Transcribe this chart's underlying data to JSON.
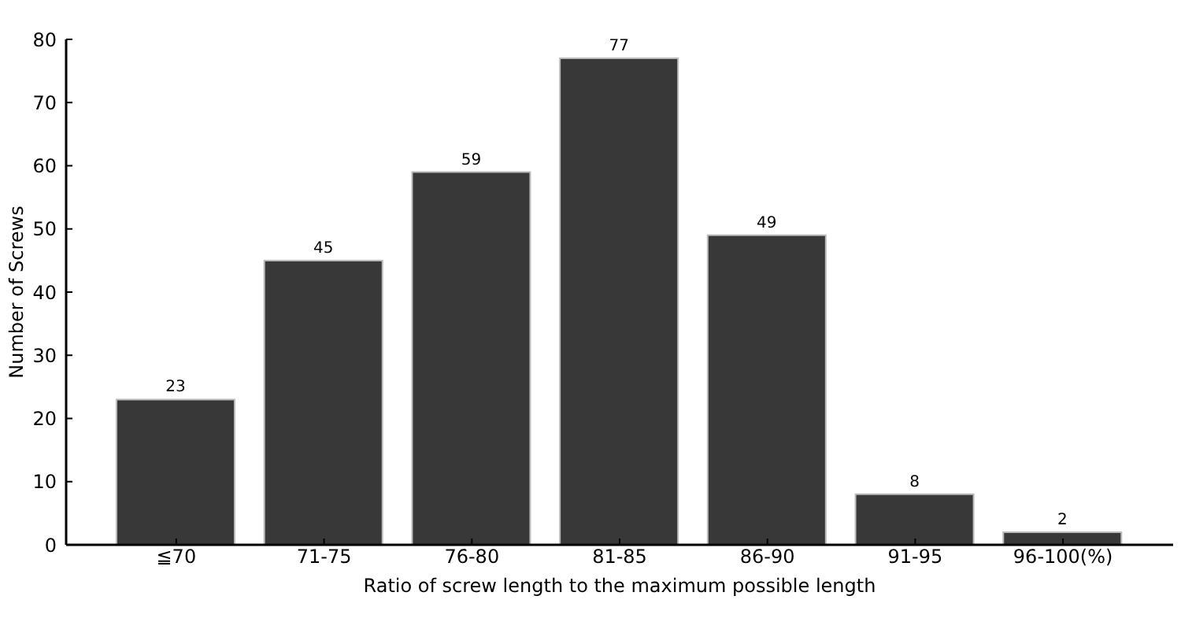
{
  "chart_data": {
    "type": "bar",
    "xlabel": "Ratio of screw length to the maximum possible length",
    "ylabel": "Number of Screws",
    "categories": [
      "≦70",
      "71-75",
      "76-80",
      "81-85",
      "86-90",
      "91-95",
      "96-100(%)"
    ],
    "values": [
      23,
      45,
      59,
      77,
      49,
      8,
      2
    ],
    "color": "#383838",
    "ylim": [
      0,
      80
    ],
    "yticks": [
      0,
      10,
      20,
      30,
      40,
      50,
      60,
      70,
      80
    ],
    "data_labels": true,
    "grid": false
  }
}
